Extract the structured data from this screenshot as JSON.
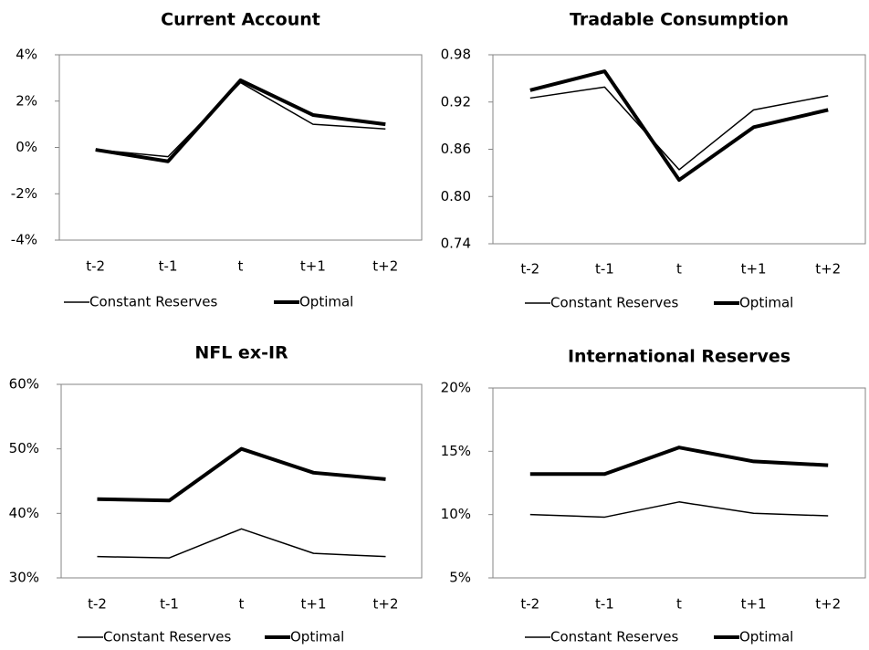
{
  "chart_data": [
    {
      "type": "line",
      "title": "Current Account",
      "categories": [
        "t-2",
        "t-1",
        "t",
        "t+1",
        "t+2"
      ],
      "ylim": [
        -4,
        4
      ],
      "yticks": [
        {
          "value": -4,
          "label": "-4%"
        },
        {
          "value": -2,
          "label": "-2%"
        },
        {
          "value": 0,
          "label": "0%"
        },
        {
          "value": 2,
          "label": "2%"
        },
        {
          "value": 4,
          "label": "4%"
        }
      ],
      "series": [
        {
          "name": "Constant Reserves",
          "color": "#000000",
          "line_width": 1.5,
          "values": [
            -0.1,
            -0.4,
            2.8,
            1.0,
            0.8
          ]
        },
        {
          "name": "Optimal",
          "color": "#000000",
          "line_width": 4,
          "values": [
            -0.1,
            -0.6,
            2.9,
            1.4,
            1.0
          ]
        }
      ]
    },
    {
      "type": "line",
      "title": "Tradable Consumption",
      "categories": [
        "t-2",
        "t-1",
        "t",
        "t+1",
        "t+2"
      ],
      "ylim": [
        0.74,
        0.98
      ],
      "yticks": [
        0.74,
        {
          "value": 0.8,
          "label": "0.80"
        },
        0.86,
        0.92,
        0.98
      ],
      "series": [
        {
          "name": "Constant Reserves",
          "color": "#000000",
          "line_width": 1.5,
          "values": [
            0.925,
            0.939,
            0.834,
            0.91,
            0.928
          ]
        },
        {
          "name": "Optimal",
          "color": "#000000",
          "line_width": 4,
          "values": [
            0.935,
            0.959,
            0.821,
            0.888,
            0.91
          ]
        }
      ]
    },
    {
      "type": "line",
      "title": "NFL ex-IR",
      "categories": [
        "t-2",
        "t-1",
        "t",
        "t+1",
        "t+2"
      ],
      "ylim": [
        30,
        60
      ],
      "yticks": [
        {
          "value": 30,
          "label": "30%"
        },
        {
          "value": 40,
          "label": "40%"
        },
        {
          "value": 50,
          "label": "50%"
        },
        {
          "value": 60,
          "label": "60%"
        }
      ],
      "series": [
        {
          "name": "Constant Reserves",
          "color": "#000000",
          "line_width": 1.5,
          "values": [
            33.3,
            33.1,
            37.6,
            33.8,
            33.3
          ]
        },
        {
          "name": "Optimal",
          "color": "#000000",
          "line_width": 4,
          "values": [
            42.2,
            42.0,
            50.0,
            46.3,
            45.3
          ]
        }
      ]
    },
    {
      "type": "line",
      "title": "International Reserves",
      "categories": [
        "t-2",
        "t-1",
        "t",
        "t+1",
        "t+2"
      ],
      "ylim": [
        5,
        20
      ],
      "yticks": [
        {
          "value": 5,
          "label": "5%"
        },
        {
          "value": 10,
          "label": "10%"
        },
        {
          "value": 15,
          "label": "15%"
        },
        {
          "value": 20,
          "label": "20%"
        }
      ],
      "series": [
        {
          "name": "Constant Reserves",
          "color": "#000000",
          "line_width": 1.5,
          "values": [
            10.0,
            9.8,
            11.0,
            10.1,
            9.9
          ]
        },
        {
          "name": "Optimal",
          "color": "#000000",
          "line_width": 4,
          "values": [
            13.2,
            13.2,
            15.3,
            14.2,
            13.9
          ]
        }
      ]
    }
  ]
}
